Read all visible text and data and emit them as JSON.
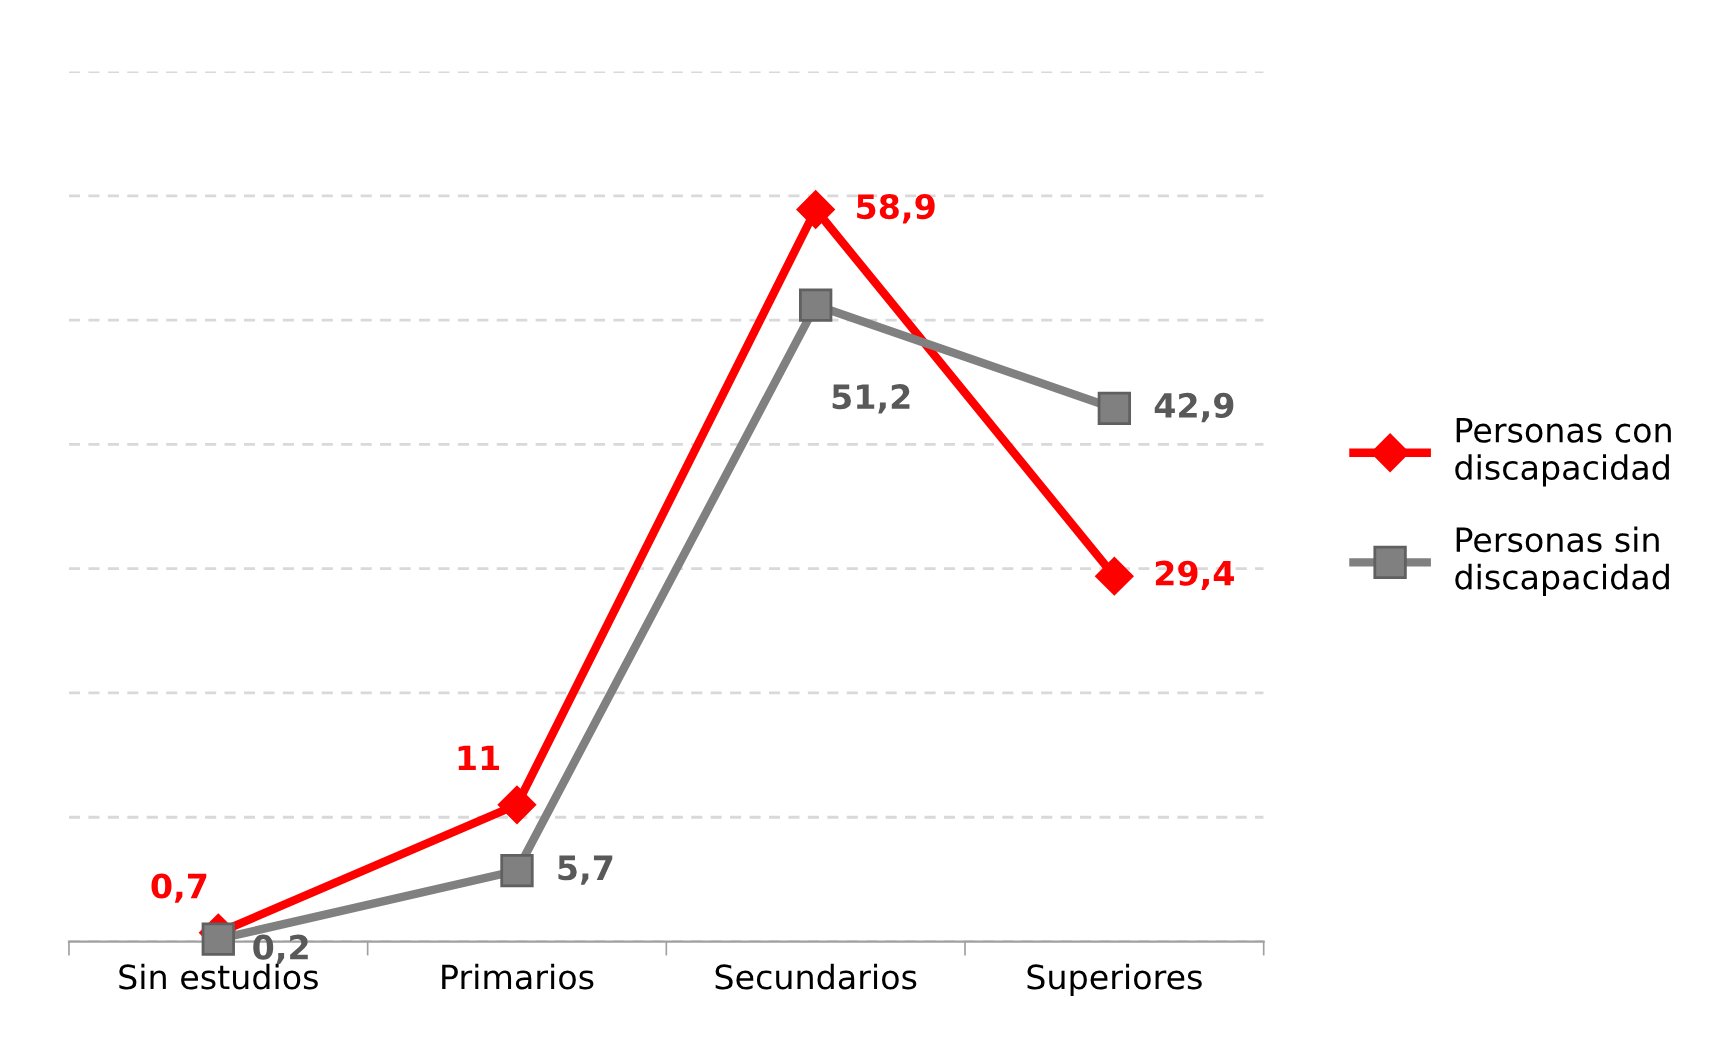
{
  "chart_data": {
    "type": "line",
    "categories": [
      "Sin estudios",
      "Primarios",
      "Secundarios",
      "Superiores"
    ],
    "series": [
      {
        "name": "Personas con discapacidad",
        "color": "#ff0000",
        "marker": "diamond",
        "values": [
          0.7,
          11,
          58.9,
          29.4
        ],
        "value_labels": [
          "0,7",
          "11",
          "58,9",
          "29,4"
        ]
      },
      {
        "name": "Personas sin discapacidad",
        "color": "#808080",
        "marker": "square",
        "values": [
          0.2,
          5.7,
          51.2,
          42.9
        ],
        "value_labels": [
          "0,2",
          "5,7",
          "51,2",
          "42,9"
        ]
      }
    ],
    "ylim": [
      0,
      70
    ],
    "yticks": [
      {
        "value": 0,
        "label": null
      },
      {
        "value": 10,
        "label": null
      },
      {
        "value": 20,
        "label": null
      },
      {
        "value": 30,
        "label": null
      },
      {
        "value": 40,
        "label": null
      },
      {
        "value": 50,
        "label": null
      },
      {
        "value": 60,
        "label": null
      },
      {
        "value": 70,
        "label": null
      }
    ],
    "tick_labels": "x",
    "grid": "y",
    "legend": "right",
    "line_style": "solid"
  }
}
